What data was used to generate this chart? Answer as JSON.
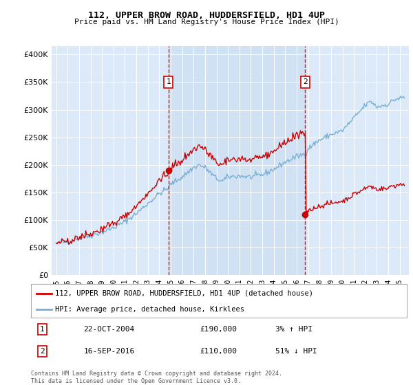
{
  "title": "112, UPPER BROW ROAD, HUDDERSFIELD, HD1 4UP",
  "subtitle": "Price paid vs. HM Land Registry's House Price Index (HPI)",
  "legend_line1": "112, UPPER BROW ROAD, HUDDERSFIELD, HD1 4UP (detached house)",
  "legend_line2": "HPI: Average price, detached house, Kirklees",
  "annotation1_label": "1",
  "annotation1_date": "22-OCT-2004",
  "annotation1_price": "£190,000",
  "annotation1_hpi": "3% ↑ HPI",
  "annotation2_label": "2",
  "annotation2_date": "16-SEP-2016",
  "annotation2_price": "£110,000",
  "annotation2_hpi": "51% ↓ HPI",
  "sale1_year": 2004.8,
  "sale1_price": 190000,
  "sale2_year": 2016.75,
  "sale2_price": 110000,
  "footer": "Contains HM Land Registry data © Crown copyright and database right 2024.\nThis data is licensed under the Open Government Licence v3.0.",
  "plot_bg_color": "#dce9f8",
  "shade_color": "#c8ddf0",
  "red_color": "#cc0000",
  "blue_color": "#7aafd4",
  "ylim_min": 0,
  "ylim_max": 415000,
  "yticks": [
    0,
    50000,
    100000,
    150000,
    200000,
    250000,
    300000,
    350000,
    400000
  ],
  "xlim_min": 1994.6,
  "xlim_max": 2025.8
}
